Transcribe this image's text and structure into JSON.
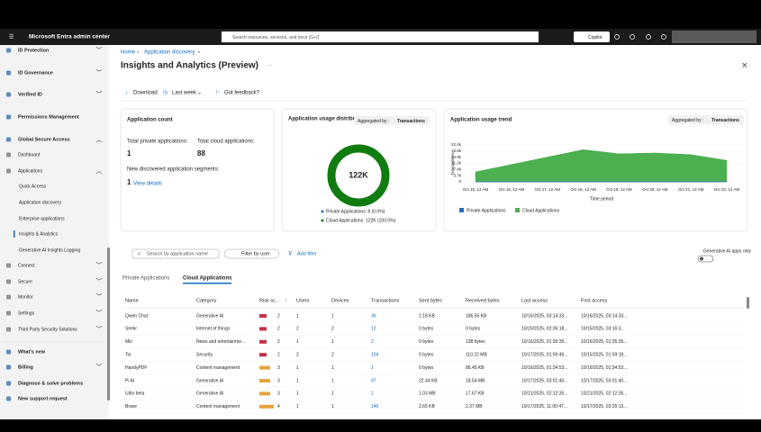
{
  "header": {
    "title": "Microsoft Entra admin center",
    "search": "Search resources, services, and docs (G+/)",
    "copilot": "Copilot"
  },
  "sidebar": [
    {
      "label": "ID Protection"
    },
    {
      "label": "ID Governance"
    },
    {
      "label": "Verified ID"
    },
    {
      "label": "Permissions Management"
    },
    {
      "label": "Global Secure Access",
      "children": [
        {
          "label": "Dashboard"
        },
        {
          "label": "Applications",
          "children": [
            {
              "label": "Quick Access"
            },
            {
              "label": "Application discovery"
            },
            {
              "label": "Enterprise applications"
            },
            {
              "label": "Insights & Analytics"
            },
            {
              "label": "Generative AI Insights Logging"
            }
          ]
        },
        {
          "label": "Connect"
        },
        {
          "label": "Secure"
        },
        {
          "label": "Monitor"
        },
        {
          "label": "Settings"
        },
        {
          "label": "Third Party Security Solutions"
        }
      ]
    },
    {
      "label": "What's new"
    },
    {
      "label": "Billing"
    },
    {
      "label": "Diagnose & solve problems"
    },
    {
      "label": "New support request"
    }
  ],
  "breadcrumb": [
    "Home",
    "Application discovery"
  ],
  "title": "Insights and Analytics (Preview)",
  "toolbar": [
    "Download",
    "Last week",
    "Got feedback?"
  ],
  "app_count": {
    "title": "Application count",
    "private_label": "Total private applications:",
    "private_value": 1,
    "cloud_label": "Total cloud applications:",
    "cloud_value": 88,
    "segments_label": "New discovered application segments:",
    "segments_value": 1,
    "link": "View details"
  },
  "donut": {
    "title": "Application usage distribution",
    "aggregated": "Aggregated by :",
    "aggregated_value": "Transactions",
    "center_label": "122K",
    "values": [
      8,
      122000
    ],
    "colors": [
      "#1f6fc5",
      "#107c10"
    ],
    "legend": [
      "Private Applications: 8 (0.0%)",
      "Cloud Applications: 122K (100.0%)"
    ]
  },
  "usage_trend": {
    "type": "area",
    "title": "Application usage trend",
    "aggregated": "Aggregated by :",
    "aggregated_value": "Transactions",
    "y_label": "Transactions",
    "x_label": "Time period",
    "categories": [
      "Oct 15, 12 AM",
      "Oct 16, 12 AM",
      "Oct 17, 12 AM",
      "Oct 18, 12 AM",
      "Oct 19, 12 AM",
      "Oct 20, 12 AM",
      "Oct 21, 12 AM",
      "Oct 22, 12 AM"
    ],
    "series": [
      {
        "name": "Private Applications",
        "color": "#1f6fc5",
        "values": [
          1,
          1,
          1,
          1,
          1,
          1,
          1,
          1
        ]
      },
      {
        "name": "Cloud Applications",
        "color": "#4caf50",
        "values": [
          6000,
          10500,
          15000,
          19500,
          17000,
          17500,
          16500,
          13000
        ]
      }
    ],
    "ylim": [
      0,
      22400
    ],
    "yticks": [
      0,
      {
        "value": 3700,
        "label": "3.7k"
      },
      {
        "value": 7400,
        "label": "7.4k"
      },
      {
        "value": 11200,
        "label": "11.2k"
      },
      {
        "value": 14900,
        "label": "14.9k"
      },
      {
        "value": 18600,
        "label": "18.6k"
      },
      {
        "value": 22400,
        "label": "22.4k"
      }
    ]
  },
  "filters": {
    "search": "Search by application name",
    "user": "Filter by user",
    "add": "Add filter",
    "toggle": "Generative AI apps only"
  },
  "tabs": [
    "Private Applications",
    "Cloud Applications"
  ],
  "table": {
    "columns": [
      "Name",
      "Category",
      "Risk sc...",
      "Users",
      "Devices",
      "Transactions",
      "Sent bytes",
      "Received bytes",
      "Last access",
      "First access"
    ],
    "rows": [
      [
        "Qwen Chat",
        "Generative AI",
        2,
        1,
        1,
        36,
        "2.18 KB",
        "186.55 KB",
        "10/16/2025, 03:14:33...",
        "10/16/2025, 03:14:33..."
      ],
      [
        "Seekr",
        "Internet of things",
        2,
        2,
        2,
        12,
        "0 bytes",
        "0 bytes",
        "10/20/2025, 02:36:18...",
        "10/15/2025, 03:16:3..."
      ],
      [
        "Mio",
        "News and entertainme...",
        2,
        1,
        1,
        2,
        "0 bytes",
        "138 bytes",
        "10/16/2025, 01:35:35...",
        "10/16/2025, 01:35:35..."
      ],
      [
        "Tor",
        "Security",
        2,
        2,
        2,
        104,
        "0 bytes",
        "110.22 MB",
        "10/17/2025, 01:59:49...",
        "10/15/2025, 01:59:19..."
      ],
      [
        "HandyPDF",
        "Content management",
        3,
        1,
        1,
        1,
        "0 bytes",
        "86.45 KB",
        "10/16/2025, 01:34:53...",
        "10/16/2025, 01:34:53..."
      ],
      [
        "Pi AI",
        "Generative AI",
        3,
        1,
        1,
        97,
        "22.44 KB",
        "18.54 MB",
        "10/17/2025, 03:01:40...",
        "10/17/2025, 03:01:40..."
      ],
      [
        "Udio beta",
        "Generative AI",
        3,
        1,
        1,
        2,
        "1.03 MB",
        "17.67 KB",
        "10/21/2025, 02:12:35...",
        "10/21/2025, 02:12:35..."
      ],
      [
        "Brave",
        "Content management",
        4,
        1,
        1,
        146,
        "2.65 KB",
        "2.37 MB",
        "10/17/2025, 11:00:47...",
        "10/17/2025, 03:25:13..."
      ]
    ]
  }
}
